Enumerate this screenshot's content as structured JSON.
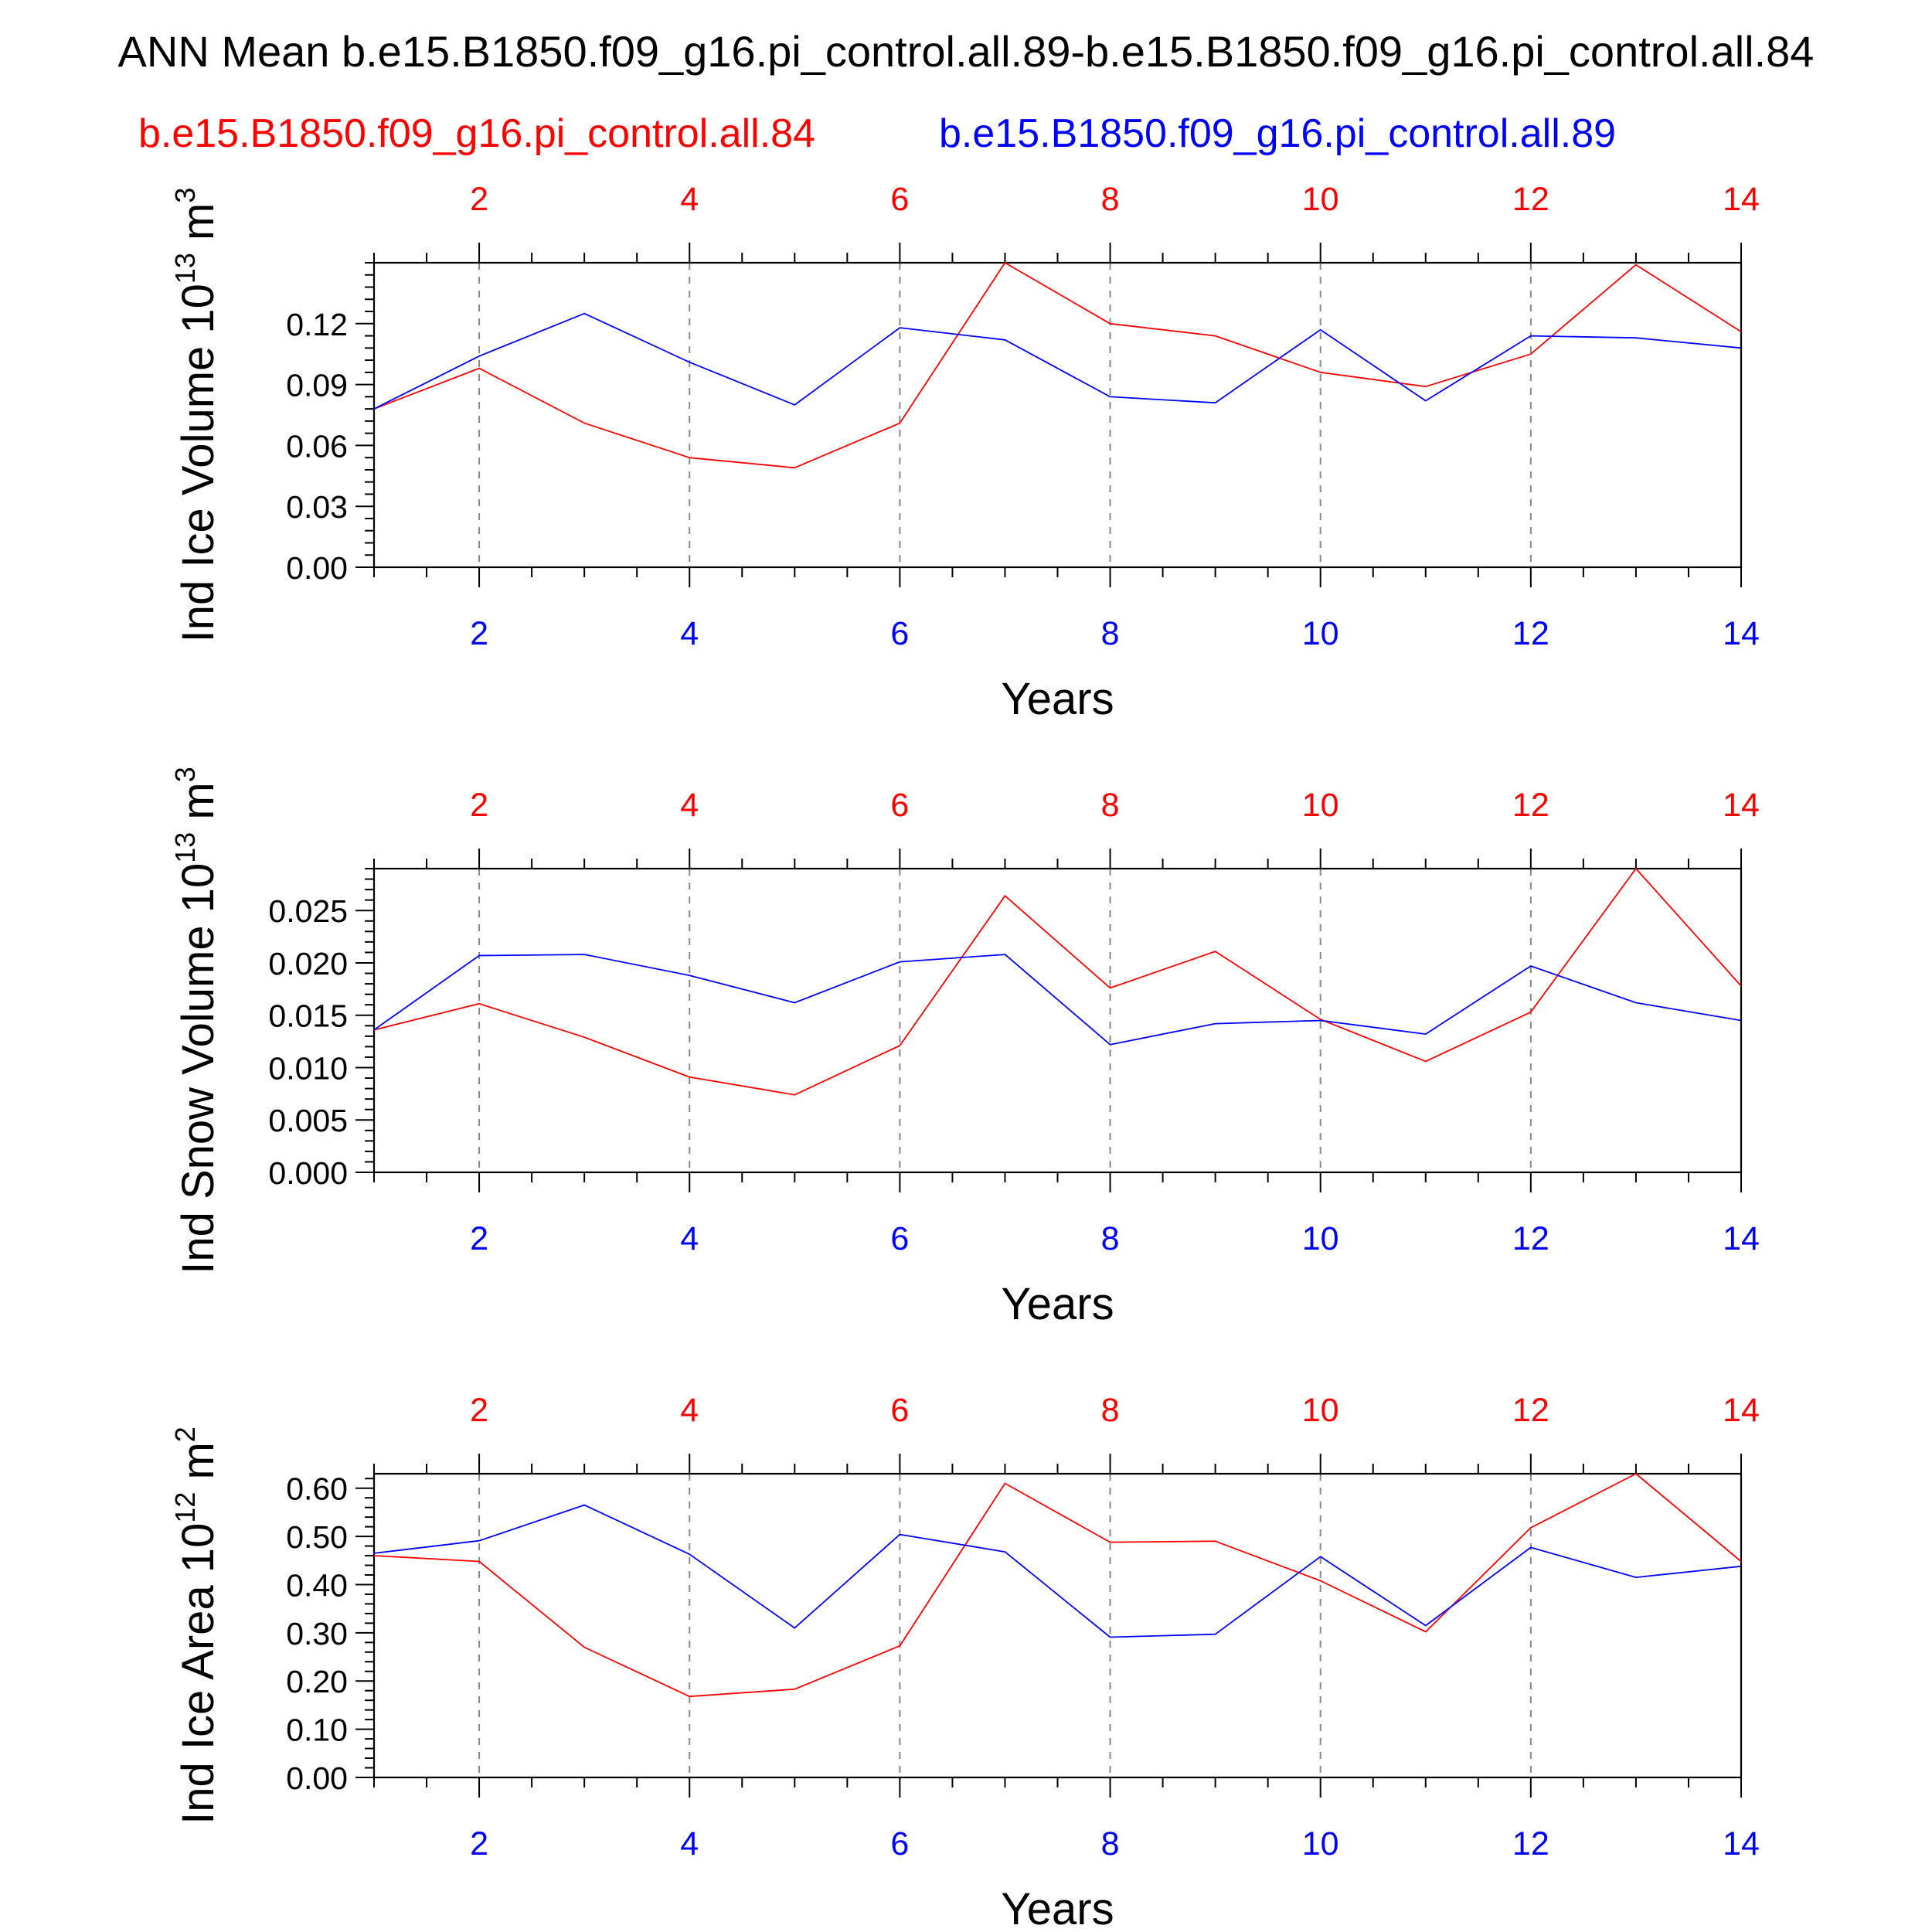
{
  "title": "ANN Mean b.e15.B1850.f09_g16.pi_control.all.89-b.e15.B1850.f09_g16.pi_control.all.84",
  "case_labels": {
    "red": "b.e15.B1850.f09_g16.pi_control.all.84",
    "blue": "b.e15.B1850.f09_g16.pi_control.all.89"
  },
  "colors": {
    "red": "#ff0000",
    "blue": "#0000ff",
    "axis": "#000000",
    "grid": "#888888"
  },
  "chart_data": [
    {
      "type": "line",
      "ylabel_main": "Ind Ice Volume 10",
      "ylabel_exp": "13",
      "ylabel_unit": " m",
      "ylabel_unit_exp": "3",
      "xlabel": "Years",
      "xlim": [
        1,
        14
      ],
      "ylim": [
        0,
        0.15
      ],
      "yticks": [
        0.0,
        0.03,
        0.06,
        0.09,
        0.12
      ],
      "ytick_labels": [
        "0.00",
        "0.03",
        "0.06",
        "0.09",
        "0.12"
      ],
      "xticks": [
        2,
        4,
        6,
        8,
        10,
        12,
        14
      ],
      "xtick_labels": [
        "2",
        "4",
        "6",
        "8",
        "10",
        "12",
        "14"
      ],
      "grid": "vertical-dashed",
      "x": [
        1,
        2,
        3,
        4,
        5,
        6,
        7,
        8,
        9,
        10,
        11,
        12,
        13,
        14
      ],
      "series": [
        {
          "color": "red",
          "values": [
            0.078,
            0.098,
            0.071,
            0.054,
            0.049,
            0.071,
            0.15,
            0.12,
            0.114,
            0.096,
            0.089,
            0.105,
            0.149,
            0.116
          ]
        },
        {
          "color": "blue",
          "values": [
            0.078,
            0.104,
            0.125,
            0.101,
            0.08,
            0.118,
            0.112,
            0.084,
            0.081,
            0.117,
            0.082,
            0.114,
            0.113,
            0.108
          ]
        }
      ]
    },
    {
      "type": "line",
      "ylabel_main": "Ind Snow Volume 10",
      "ylabel_exp": "13",
      "ylabel_unit": " m",
      "ylabel_unit_exp": "3",
      "xlabel": "Years",
      "xlim": [
        1,
        14
      ],
      "ylim": [
        0,
        0.029
      ],
      "yticks": [
        0.0,
        0.005,
        0.01,
        0.015,
        0.02,
        0.025
      ],
      "ytick_labels": [
        "0.000",
        "0.005",
        "0.010",
        "0.015",
        "0.020",
        "0.025"
      ],
      "xticks": [
        2,
        4,
        6,
        8,
        10,
        12,
        14
      ],
      "xtick_labels": [
        "2",
        "4",
        "6",
        "8",
        "10",
        "12",
        "14"
      ],
      "grid": "vertical-dashed",
      "x": [
        1,
        2,
        3,
        4,
        5,
        6,
        7,
        8,
        9,
        10,
        11,
        12,
        13,
        14
      ],
      "series": [
        {
          "color": "red",
          "values": [
            0.0136,
            0.0161,
            0.0129,
            0.0091,
            0.0074,
            0.0121,
            0.0264,
            0.0176,
            0.0211,
            0.0146,
            0.0106,
            0.0153,
            0.029,
            0.0178
          ]
        },
        {
          "color": "blue",
          "values": [
            0.0136,
            0.0207,
            0.0208,
            0.0188,
            0.0162,
            0.0201,
            0.0208,
            0.0122,
            0.0142,
            0.0145,
            0.0132,
            0.0197,
            0.0162,
            0.0145
          ]
        }
      ]
    },
    {
      "type": "line",
      "ylabel_main": "Ind Ice Area 10",
      "ylabel_exp": "12",
      "ylabel_unit": " m",
      "ylabel_unit_exp": "2",
      "xlabel": "Years",
      "xlim": [
        1,
        14
      ],
      "ylim": [
        0,
        0.63
      ],
      "yticks": [
        0.0,
        0.1,
        0.2,
        0.3,
        0.4,
        0.5,
        0.6
      ],
      "ytick_labels": [
        "0.00",
        "0.10",
        "0.20",
        "0.30",
        "0.40",
        "0.50",
        "0.60"
      ],
      "xticks": [
        2,
        4,
        6,
        8,
        10,
        12,
        14
      ],
      "xtick_labels": [
        "2",
        "4",
        "6",
        "8",
        "10",
        "12",
        "14"
      ],
      "grid": "vertical-dashed",
      "x": [
        1,
        2,
        3,
        4,
        5,
        6,
        7,
        8,
        9,
        10,
        11,
        12,
        13,
        14
      ],
      "series": [
        {
          "color": "red",
          "values": [
            0.46,
            0.448,
            0.27,
            0.168,
            0.183,
            0.273,
            0.61,
            0.488,
            0.49,
            0.408,
            0.302,
            0.518,
            0.63,
            0.448
          ]
        },
        {
          "color": "blue",
          "values": [
            0.465,
            0.491,
            0.565,
            0.463,
            0.31,
            0.504,
            0.468,
            0.291,
            0.297,
            0.458,
            0.315,
            0.477,
            0.415,
            0.438
          ]
        }
      ]
    }
  ]
}
